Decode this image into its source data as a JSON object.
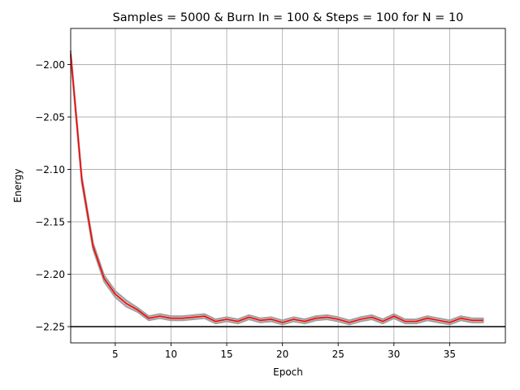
{
  "chart_data": {
    "type": "line",
    "title": "Samples = 5000 & Burn In = 100 & Steps = 100 for N = 10",
    "xlabel": "Epoch",
    "ylabel": "Energy",
    "xlim": [
      1,
      40
    ],
    "ylim": [
      -2.2655,
      -1.9655
    ],
    "xticks": [
      5,
      10,
      15,
      20,
      25,
      30,
      35
    ],
    "xtick_labels": [
      "5",
      "10",
      "15",
      "20",
      "25",
      "30",
      "35"
    ],
    "yticks": [
      -2.25,
      -2.2,
      -2.15,
      -2.1,
      -2.05,
      -2.0
    ],
    "ytick_labels": [
      "−2.25",
      "−2.20",
      "−2.15",
      "−2.10",
      "−2.05",
      "−2.00"
    ],
    "grid": true,
    "reference_line": {
      "y": -2.25,
      "color": "#000000"
    },
    "series": [
      {
        "color": "#ff0000",
        "band_color": "#a0a0a0",
        "x": [
          1,
          2,
          3,
          4,
          5,
          6,
          7,
          8,
          9,
          10,
          11,
          12,
          13,
          14,
          15,
          16,
          17,
          18,
          19,
          20,
          21,
          22,
          23,
          24,
          25,
          26,
          27,
          28,
          29,
          30,
          31,
          32,
          33,
          34,
          35,
          36,
          37,
          38
        ],
        "y": [
          -1.99,
          -2.11,
          -2.173,
          -2.204,
          -2.219,
          -2.228,
          -2.234,
          -2.242,
          -2.24,
          -2.242,
          -2.242,
          -2.241,
          -2.24,
          -2.245,
          -2.243,
          -2.245,
          -2.241,
          -2.244,
          -2.243,
          -2.246,
          -2.243,
          -2.245,
          -2.242,
          -2.241,
          -2.243,
          -2.246,
          -2.243,
          -2.241,
          -2.245,
          -2.24,
          -2.245,
          -2.245,
          -2.242,
          -2.244,
          -2.246,
          -2.242,
          -2.244,
          -2.244
        ],
        "band": [
          0.003,
          0.003,
          0.003,
          0.003,
          0.003,
          0.003,
          0.002,
          0.002,
          0.002,
          0.002,
          0.002,
          0.002,
          0.002,
          0.002,
          0.002,
          0.002,
          0.002,
          0.002,
          0.002,
          0.002,
          0.002,
          0.002,
          0.002,
          0.002,
          0.002,
          0.002,
          0.002,
          0.002,
          0.002,
          0.002,
          0.002,
          0.002,
          0.002,
          0.002,
          0.002,
          0.002,
          0.002,
          0.002
        ]
      }
    ]
  }
}
